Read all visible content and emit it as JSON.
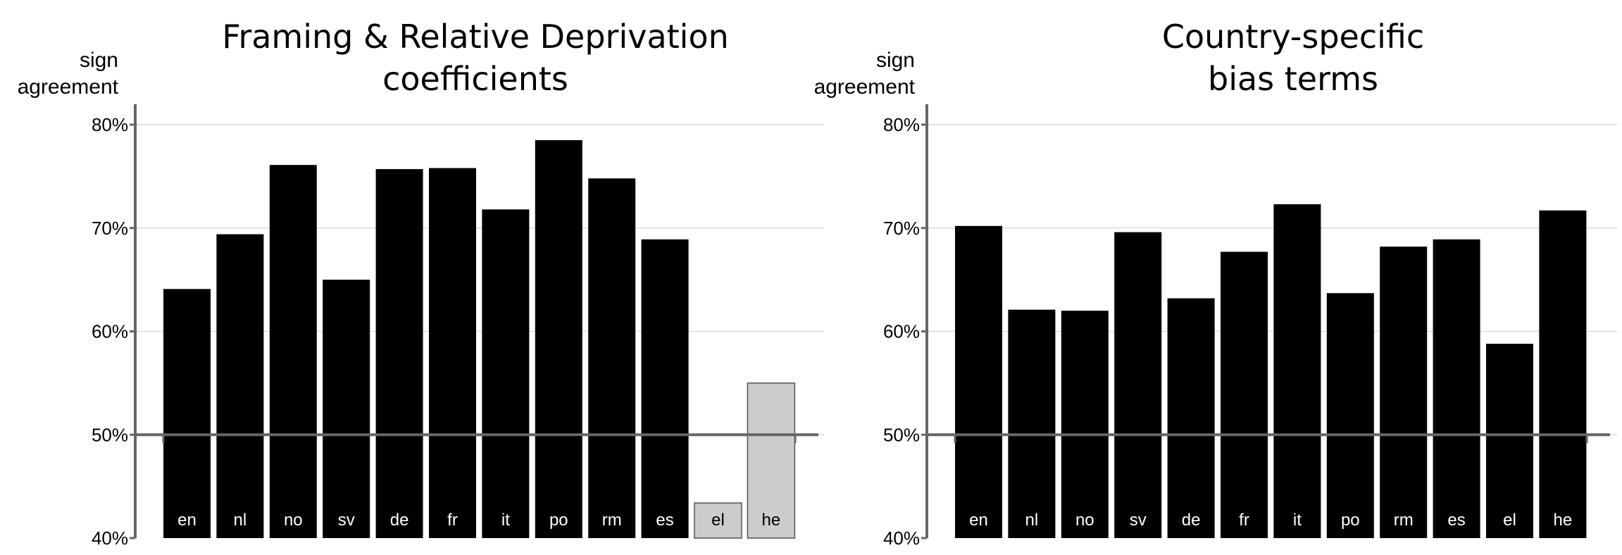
{
  "chart_data": [
    {
      "type": "bar",
      "title_lines": [
        "Framing & Relative Deprivation",
        "coefficients"
      ],
      "ylabel_lines": [
        "sign",
        "agreement"
      ],
      "xlabel": "",
      "ylim": [
        40,
        80
      ],
      "yticks": [
        "40%",
        "50%",
        "60%",
        "70%",
        "80%"
      ],
      "baseline": 50,
      "grid": true,
      "categories": [
        "en",
        "nl",
        "no",
        "sv",
        "de",
        "fr",
        "it",
        "po",
        "rm",
        "es",
        "el",
        "he"
      ],
      "values": [
        64.1,
        69.4,
        76.1,
        65.0,
        75.7,
        75.8,
        71.8,
        78.5,
        74.8,
        68.9,
        43.4,
        55.0
      ],
      "bar_colors": [
        "#000000",
        "#000000",
        "#000000",
        "#000000",
        "#000000",
        "#000000",
        "#000000",
        "#000000",
        "#000000",
        "#000000",
        "#cccccc",
        "#cccccc"
      ]
    },
    {
      "type": "bar",
      "title_lines": [
        "Country-specific",
        "bias terms"
      ],
      "ylabel_lines": [
        "sign",
        "agreement"
      ],
      "xlabel": "",
      "ylim": [
        40,
        80
      ],
      "yticks": [
        "40%",
        "50%",
        "60%",
        "70%",
        "80%"
      ],
      "baseline": 50,
      "grid": true,
      "categories": [
        "en",
        "nl",
        "no",
        "sv",
        "de",
        "fr",
        "it",
        "po",
        "rm",
        "es",
        "el",
        "he"
      ],
      "values": [
        70.2,
        62.1,
        62.0,
        69.6,
        63.2,
        67.7,
        72.3,
        63.7,
        68.2,
        68.9,
        58.8,
        71.7
      ],
      "bar_colors": [
        "#000000",
        "#000000",
        "#000000",
        "#000000",
        "#000000",
        "#000000",
        "#000000",
        "#000000",
        "#000000",
        "#000000",
        "#000000",
        "#000000"
      ]
    }
  ]
}
